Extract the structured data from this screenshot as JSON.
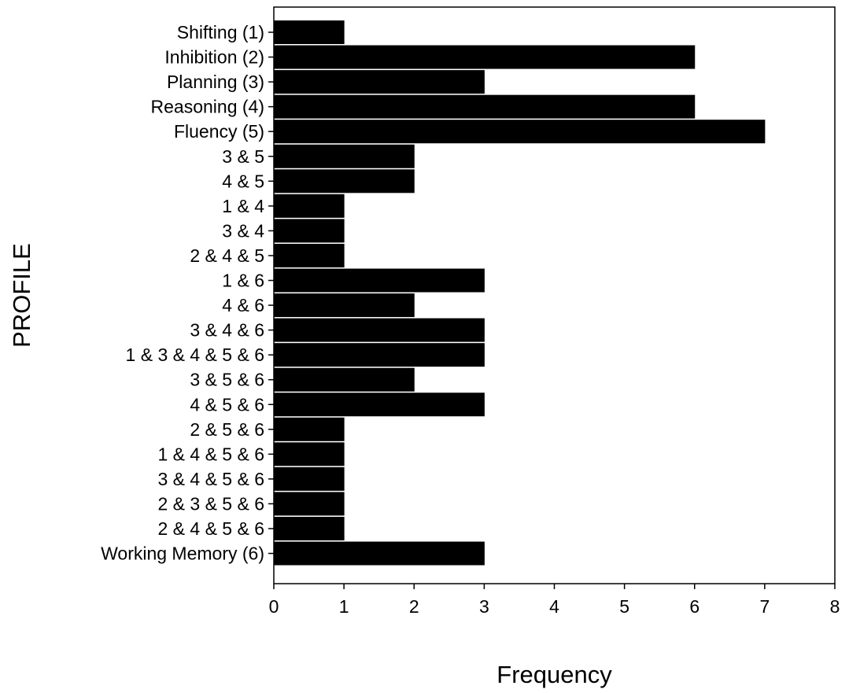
{
  "chart_data": {
    "type": "bar",
    "orientation": "horizontal",
    "title": "",
    "xlabel": "Frequency",
    "ylabel": "PROFILE",
    "xlim": [
      0,
      8
    ],
    "x_ticks": [
      "0",
      "1",
      "2",
      "3",
      "4",
      "5",
      "6",
      "7",
      "8"
    ],
    "grid": false,
    "legend": "none",
    "bar_color": "#000000",
    "categories": [
      "Shifting (1)",
      "Inhibition (2)",
      "Planning (3)",
      "Reasoning (4)",
      "Fluency (5)",
      "3 & 5",
      "4 & 5",
      "1 & 4",
      "3 & 4",
      "2 & 4 & 5",
      "1 & 6",
      "4 & 6",
      "3 & 4 & 6",
      "1 & 3 & 4 & 5 & 6",
      "3 & 5 & 6",
      "4 & 5 & 6",
      "2 & 5 & 6",
      "1 & 4 & 5 & 6",
      "3 & 4 & 5 & 6",
      "2 & 3 & 5 & 6",
      "2 & 4 & 5 & 6",
      "Working Memory (6)"
    ],
    "values": [
      1,
      6,
      3,
      6,
      7,
      2,
      2,
      1,
      1,
      1,
      3,
      2,
      3,
      3,
      2,
      3,
      1,
      1,
      1,
      1,
      1,
      3
    ]
  }
}
